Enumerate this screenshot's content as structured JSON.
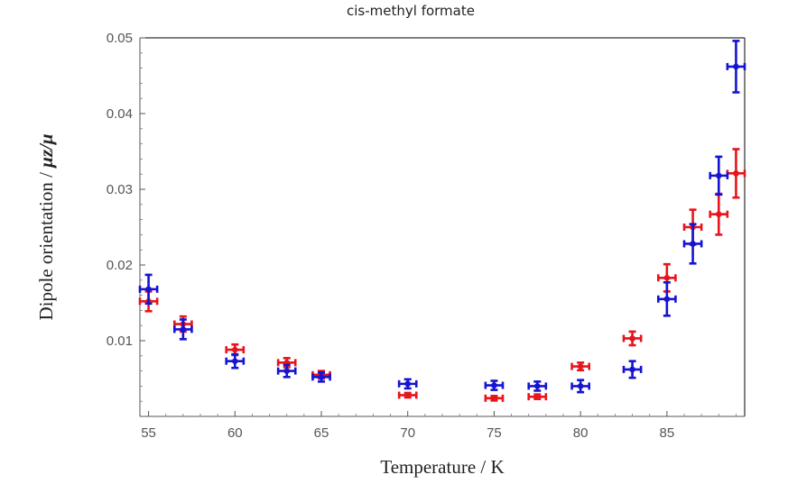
{
  "chart_data": {
    "type": "scatter",
    "title": "cis-methyl formate",
    "xlabel": "Temperature / K",
    "ylabel": "Dipole orientation / μz/μ",
    "ylabel_parts": {
      "prefix": "Dipole orientation / ",
      "math": "μz/μ"
    },
    "xlim": [
      54.5,
      89.5
    ],
    "ylim": [
      0,
      0.05
    ],
    "xticks": [
      55,
      60,
      65,
      70,
      75,
      80,
      85
    ],
    "xtick_labels": [
      "55",
      "60",
      "65",
      "70",
      "75",
      "80",
      "85"
    ],
    "yticks": [
      0.01,
      0.02,
      0.03,
      0.04,
      0.05
    ],
    "ytick_labels": [
      "0.01",
      "0.02",
      "0.03",
      "0.04",
      "0.05"
    ],
    "grid": false,
    "legend": "none",
    "series": [
      {
        "color": "#e8141c",
        "x": [
          55,
          57,
          60,
          63,
          65,
          70,
          75,
          77.5,
          80,
          83,
          85,
          86.5,
          88,
          89
        ],
        "y": [
          0.0152,
          0.0122,
          0.0088,
          0.0071,
          0.0055,
          0.0028,
          0.0024,
          0.0026,
          0.0066,
          0.0103,
          0.0183,
          0.025,
          0.0267,
          0.0321
        ],
        "xerr": [
          0.5,
          0.5,
          0.5,
          0.5,
          0.5,
          0.5,
          0.5,
          0.5,
          0.5,
          0.5,
          0.5,
          0.5,
          0.5,
          0.5
        ],
        "yerr": [
          0.0013,
          0.001,
          0.0007,
          0.0006,
          0.0005,
          0.0003,
          0.0003,
          0.0003,
          0.0005,
          0.0009,
          0.0018,
          0.0023,
          0.0027,
          0.0032
        ]
      },
      {
        "color": "#1414d2",
        "x": [
          55,
          57,
          60,
          63,
          65,
          70,
          75,
          77.5,
          80,
          83,
          85,
          86.5,
          88,
          89
        ],
        "y": [
          0.0168,
          0.0115,
          0.0073,
          0.006,
          0.0052,
          0.0043,
          0.0041,
          0.004,
          0.004,
          0.0062,
          0.0155,
          0.0228,
          0.0318,
          0.0462
        ],
        "xerr": [
          0.5,
          0.5,
          0.5,
          0.5,
          0.5,
          0.5,
          0.5,
          0.5,
          0.5,
          0.5,
          0.5,
          0.5,
          0.5,
          0.5
        ],
        "yerr": [
          0.0019,
          0.0013,
          0.0009,
          0.0008,
          0.0006,
          0.0006,
          0.0006,
          0.0006,
          0.0008,
          0.0011,
          0.0022,
          0.0026,
          0.0025,
          0.0034
        ]
      }
    ]
  }
}
